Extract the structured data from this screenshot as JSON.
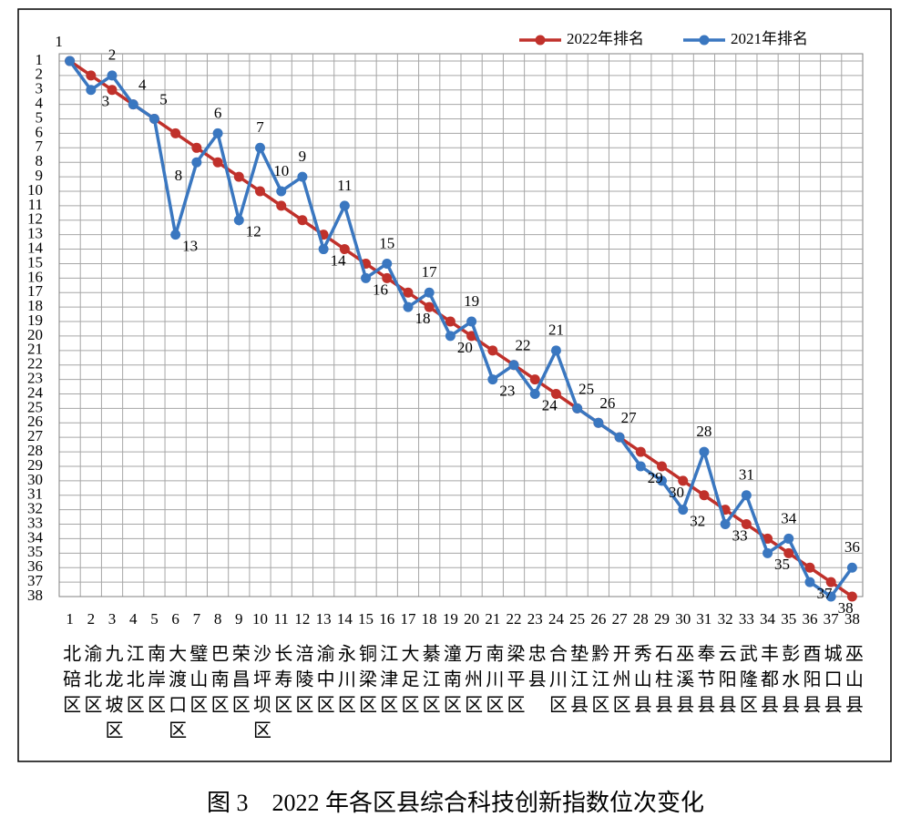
{
  "chart_data": {
    "type": "line",
    "caption": "图 3　2022 年各区县综合科技创新指数位次变化",
    "x": [
      1,
      2,
      3,
      4,
      5,
      6,
      7,
      8,
      9,
      10,
      11,
      12,
      13,
      14,
      15,
      16,
      17,
      18,
      19,
      20,
      21,
      22,
      23,
      24,
      25,
      26,
      27,
      28,
      29,
      30,
      31,
      32,
      33,
      34,
      35,
      36,
      37,
      38
    ],
    "categories": [
      "北碚区",
      "渝北区",
      "九龙坡区",
      "江北区",
      "南岸区",
      "大渡口区",
      "璧山区",
      "巴南区",
      "荣昌区",
      "沙坪坝区",
      "长寿区",
      "涪陵区",
      "渝中区",
      "永川区",
      "铜梁区",
      "江津区",
      "大足区",
      "綦江区",
      "潼南区",
      "万州区",
      "南川区",
      "梁平区",
      "忠县",
      "合川区",
      "垫江县",
      "黔江区",
      "开州区",
      "秀山县",
      "石柱县",
      "巫溪县",
      "奉节县",
      "云阳县",
      "武隆区",
      "丰都县",
      "彭水县",
      "酉阳县",
      "城口县",
      "巫山县"
    ],
    "series": [
      {
        "name": "2022年排名",
        "color": "#c0312b",
        "values": [
          1,
          2,
          3,
          4,
          5,
          6,
          7,
          8,
          9,
          10,
          11,
          12,
          13,
          14,
          15,
          16,
          17,
          18,
          19,
          20,
          21,
          22,
          23,
          24,
          25,
          26,
          27,
          28,
          29,
          30,
          31,
          32,
          33,
          34,
          35,
          36,
          37,
          38
        ]
      },
      {
        "name": "2021年排名",
        "color": "#3a77c0",
        "values": [
          1,
          3,
          2,
          4,
          5,
          13,
          8,
          6,
          12,
          7,
          10,
          9,
          14,
          11,
          16,
          15,
          18,
          17,
          20,
          19,
          23,
          22,
          24,
          21,
          25,
          26,
          27,
          29,
          30,
          32,
          28,
          33,
          31,
          35,
          34,
          37,
          38,
          36
        ]
      }
    ],
    "xlim": [
      0.5,
      38.5
    ],
    "ylim": [
      38,
      0.5
    ],
    "yticks": [
      1,
      2,
      3,
      4,
      5,
      6,
      7,
      8,
      9,
      10,
      11,
      12,
      13,
      14,
      15,
      16,
      17,
      18,
      19,
      20,
      21,
      22,
      23,
      24,
      25,
      26,
      27,
      28,
      29,
      30,
      31,
      32,
      33,
      34,
      35,
      36,
      37,
      38
    ],
    "grid": true,
    "legend": "top-right"
  }
}
